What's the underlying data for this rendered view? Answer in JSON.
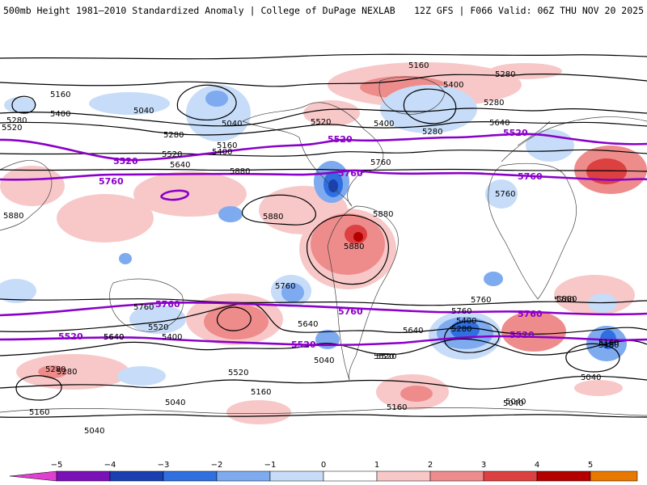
{
  "header": {
    "left": "500mb Height 1981–2010 Standardized Anomaly | College of DuPage NEXLAB",
    "right": "12Z GFS | F066 Valid: 06Z THU NOV 20 2025"
  },
  "colors": {
    "purple_contour": "#8a00c8",
    "contour": "#000000",
    "coast": "#444444"
  },
  "contour_labels": [
    "5160",
    "5400",
    "5280",
    "5040",
    "5160",
    "5280",
    "5400",
    "5520",
    "5040",
    "5280",
    "5520",
    "5640",
    "5400",
    "5520",
    "5400",
    "5280",
    "5160",
    "5280",
    "5640",
    "5760",
    "5880",
    "5880",
    "5880",
    "5760",
    "5880",
    "5880",
    "5760",
    "5760",
    "5640",
    "5760",
    "5880",
    "5400",
    "5520",
    "5520",
    "5640",
    "5760",
    "5400",
    "5280",
    "5040",
    "5160",
    "5280",
    "5160",
    "5040",
    "5040",
    "5160",
    "5040",
    "5520",
    "5040",
    "5160",
    "5040",
    "5760",
    "5640",
    "5280",
    "5640",
    "5520",
    "5160"
  ],
  "purple_labels": [
    "5520",
    "5760",
    "5520",
    "5760",
    "5760",
    "5520",
    "5760",
    "5760",
    "5520",
    "5520",
    "5520",
    "5760"
  ],
  "colorbar": {
    "ticks": [
      "−5",
      "−4",
      "−3",
      "−2",
      "−1",
      "0",
      "1",
      "2",
      "3",
      "4",
      "5"
    ],
    "bins": [
      "#e040d0",
      "#7a10b8",
      "#1a3fb0",
      "#2f6fe0",
      "#7eaaf0",
      "#c6dcf8",
      "#ffffff",
      "#f8c8c8",
      "#ee8c8c",
      "#dc4040",
      "#b40000",
      "#e87800",
      "#f8c000"
    ]
  }
}
